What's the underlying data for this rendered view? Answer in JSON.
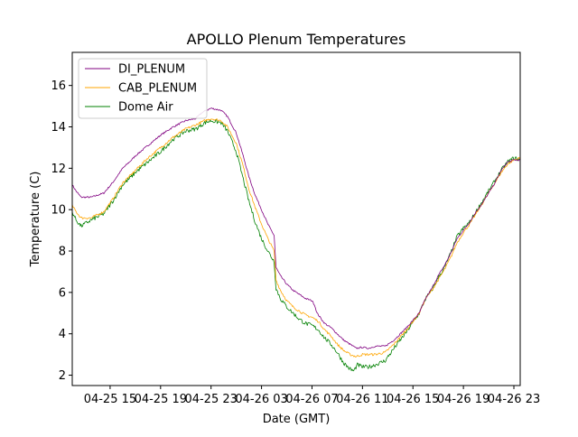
{
  "chart_data": {
    "type": "line",
    "title": "APOLLO Plenum Temperatures",
    "xlabel": "Date (GMT)",
    "ylabel": "Temperature (C)",
    "x_unit": "hours since 04-25 12:00",
    "xlim": [
      0,
      35.5
    ],
    "ylim": [
      1.5,
      17.6
    ],
    "x_ticks": [
      {
        "value": 3,
        "label": "04-25 15"
      },
      {
        "value": 7,
        "label": "04-25 19"
      },
      {
        "value": 11,
        "label": "04-25 23"
      },
      {
        "value": 15,
        "label": "04-26 03"
      },
      {
        "value": 19,
        "label": "04-26 07"
      },
      {
        "value": 23,
        "label": "04-26 11"
      },
      {
        "value": 27,
        "label": "04-26 15"
      },
      {
        "value": 31,
        "label": "04-26 19"
      },
      {
        "value": 35,
        "label": "04-26 23"
      }
    ],
    "y_ticks": [
      {
        "value": 2,
        "label": "2"
      },
      {
        "value": 4,
        "label": "4"
      },
      {
        "value": 6,
        "label": "6"
      },
      {
        "value": 8,
        "label": "8"
      },
      {
        "value": 10,
        "label": "10"
      },
      {
        "value": 12,
        "label": "12"
      },
      {
        "value": 14,
        "label": "14"
      },
      {
        "value": 16,
        "label": "16"
      }
    ],
    "grid": false,
    "legend_position": "top-left",
    "series": [
      {
        "name": "DI_PLENUM",
        "color": "#800080",
        "points": [
          [
            0,
            11.2
          ],
          [
            0.3,
            10.9
          ],
          [
            0.7,
            10.6
          ],
          [
            1.5,
            10.6
          ],
          [
            2.5,
            10.8
          ],
          [
            3.2,
            11.3
          ],
          [
            4,
            12.0
          ],
          [
            4.7,
            12.4
          ],
          [
            5,
            12.6
          ],
          [
            6,
            13.1
          ],
          [
            7,
            13.6
          ],
          [
            8,
            14.0
          ],
          [
            9,
            14.3
          ],
          [
            9.8,
            14.4
          ],
          [
            10.3,
            14.7
          ],
          [
            11,
            14.9
          ],
          [
            11.8,
            14.8
          ],
          [
            12.3,
            14.5
          ],
          [
            13,
            13.7
          ],
          [
            13.5,
            12.7
          ],
          [
            14,
            11.6
          ],
          [
            14.5,
            10.7
          ],
          [
            15,
            10.0
          ],
          [
            15.5,
            9.3
          ],
          [
            16.0,
            8.75
          ],
          [
            16.15,
            7.2
          ],
          [
            16.5,
            6.8
          ],
          [
            17,
            6.4
          ],
          [
            17.5,
            6.1
          ],
          [
            18,
            5.9
          ],
          [
            18.5,
            5.7
          ],
          [
            19,
            5.6
          ],
          [
            19.2,
            5.4
          ],
          [
            19.4,
            5.0
          ],
          [
            20,
            4.5
          ],
          [
            20.5,
            4.3
          ],
          [
            21,
            4.0
          ],
          [
            21.5,
            3.7
          ],
          [
            22,
            3.5
          ],
          [
            22.5,
            3.3
          ],
          [
            23,
            3.35
          ],
          [
            23.5,
            3.3
          ],
          [
            24,
            3.4
          ],
          [
            24.8,
            3.4
          ],
          [
            25.5,
            3.7
          ],
          [
            26.5,
            4.3
          ],
          [
            27.5,
            5.0
          ],
          [
            28,
            5.7
          ],
          [
            28.5,
            6.2
          ],
          [
            29,
            6.8
          ],
          [
            29.5,
            7.3
          ],
          [
            30,
            7.9
          ],
          [
            30.5,
            8.6
          ],
          [
            31,
            9.0
          ],
          [
            31.5,
            9.4
          ],
          [
            32,
            9.9
          ],
          [
            32.5,
            10.3
          ],
          [
            33,
            10.8
          ],
          [
            33.5,
            11.3
          ],
          [
            34,
            11.9
          ],
          [
            34.5,
            12.3
          ],
          [
            35,
            12.4
          ],
          [
            35.5,
            12.4
          ]
        ]
      },
      {
        "name": "CAB_PLENUM",
        "color": "#ffa500",
        "points": [
          [
            0,
            10.2
          ],
          [
            0.3,
            9.9
          ],
          [
            0.7,
            9.6
          ],
          [
            1.5,
            9.6
          ],
          [
            2.5,
            9.9
          ],
          [
            3.2,
            10.5
          ],
          [
            4,
            11.3
          ],
          [
            4.7,
            11.7
          ],
          [
            5,
            11.9
          ],
          [
            6,
            12.5
          ],
          [
            7,
            13.0
          ],
          [
            8,
            13.5
          ],
          [
            9,
            13.9
          ],
          [
            9.8,
            14.1
          ],
          [
            10.5,
            14.3
          ],
          [
            11,
            14.4
          ],
          [
            11.8,
            14.3
          ],
          [
            12.3,
            14.0
          ],
          [
            13,
            13.2
          ],
          [
            13.5,
            12.2
          ],
          [
            14,
            11.0
          ],
          [
            14.5,
            10.1
          ],
          [
            15,
            9.3
          ],
          [
            15.5,
            8.6
          ],
          [
            16.0,
            8.0
          ],
          [
            16.15,
            6.6
          ],
          [
            16.5,
            6.1
          ],
          [
            17,
            5.6
          ],
          [
            17.5,
            5.3
          ],
          [
            18,
            5.1
          ],
          [
            18.5,
            4.9
          ],
          [
            19,
            4.8
          ],
          [
            19.5,
            4.6
          ],
          [
            20,
            4.2
          ],
          [
            20.5,
            3.9
          ],
          [
            21,
            3.5
          ],
          [
            21.5,
            3.2
          ],
          [
            22,
            3.0
          ],
          [
            22.5,
            2.9
          ],
          [
            23,
            3.0
          ],
          [
            23.5,
            3.0
          ],
          [
            24,
            3.0
          ],
          [
            24.8,
            3.1
          ],
          [
            25.5,
            3.5
          ],
          [
            26.5,
            4.2
          ],
          [
            27.5,
            5.0
          ],
          [
            28,
            5.7
          ],
          [
            28.5,
            6.1
          ],
          [
            29,
            6.6
          ],
          [
            29.5,
            7.1
          ],
          [
            30,
            7.7
          ],
          [
            30.5,
            8.4
          ],
          [
            31,
            8.9
          ],
          [
            31.5,
            9.3
          ],
          [
            32,
            9.8
          ],
          [
            32.5,
            10.3
          ],
          [
            33,
            10.8
          ],
          [
            33.5,
            11.3
          ],
          [
            34,
            11.8
          ],
          [
            34.5,
            12.2
          ],
          [
            35,
            12.4
          ],
          [
            35.5,
            12.5
          ]
        ]
      },
      {
        "name": "Dome Air",
        "color": "#008000",
        "points": [
          [
            0,
            9.9
          ],
          [
            0.3,
            9.5
          ],
          [
            0.7,
            9.2
          ],
          [
            1.5,
            9.5
          ],
          [
            2.5,
            9.8
          ],
          [
            3.2,
            10.4
          ],
          [
            4,
            11.2
          ],
          [
            4.7,
            11.6
          ],
          [
            5,
            11.8
          ],
          [
            6,
            12.3
          ],
          [
            7,
            12.8
          ],
          [
            8,
            13.4
          ],
          [
            9,
            13.8
          ],
          [
            9.8,
            13.9
          ],
          [
            10.5,
            14.2
          ],
          [
            11,
            14.3
          ],
          [
            11.8,
            14.2
          ],
          [
            12.3,
            13.8
          ],
          [
            13,
            12.8
          ],
          [
            13.5,
            11.6
          ],
          [
            14,
            10.4
          ],
          [
            14.5,
            9.4
          ],
          [
            15,
            8.6
          ],
          [
            15.5,
            8.0
          ],
          [
            16.0,
            7.5
          ],
          [
            16.15,
            6.2
          ],
          [
            16.5,
            5.7
          ],
          [
            17,
            5.3
          ],
          [
            17.5,
            5.0
          ],
          [
            18,
            4.7
          ],
          [
            18.5,
            4.5
          ],
          [
            19,
            4.4
          ],
          [
            19.5,
            4.2
          ],
          [
            20,
            3.8
          ],
          [
            20.5,
            3.5
          ],
          [
            21,
            3.1
          ],
          [
            21.5,
            2.6
          ],
          [
            22,
            2.3
          ],
          [
            22.3,
            2.2
          ],
          [
            22.6,
            2.5
          ],
          [
            23,
            2.4
          ],
          [
            23.5,
            2.4
          ],
          [
            24,
            2.5
          ],
          [
            24.8,
            2.7
          ],
          [
            25.5,
            3.3
          ],
          [
            26.5,
            4.1
          ],
          [
            27.5,
            5.0
          ],
          [
            28,
            5.7
          ],
          [
            28.5,
            6.1
          ],
          [
            29,
            6.7
          ],
          [
            29.5,
            7.2
          ],
          [
            30,
            7.9
          ],
          [
            30.5,
            8.7
          ],
          [
            31,
            9.1
          ],
          [
            31.5,
            9.4
          ],
          [
            32,
            9.9
          ],
          [
            32.5,
            10.4
          ],
          [
            33,
            10.9
          ],
          [
            33.5,
            11.4
          ],
          [
            34,
            11.9
          ],
          [
            34.5,
            12.3
          ],
          [
            35,
            12.5
          ],
          [
            35.5,
            12.4
          ]
        ]
      }
    ]
  }
}
